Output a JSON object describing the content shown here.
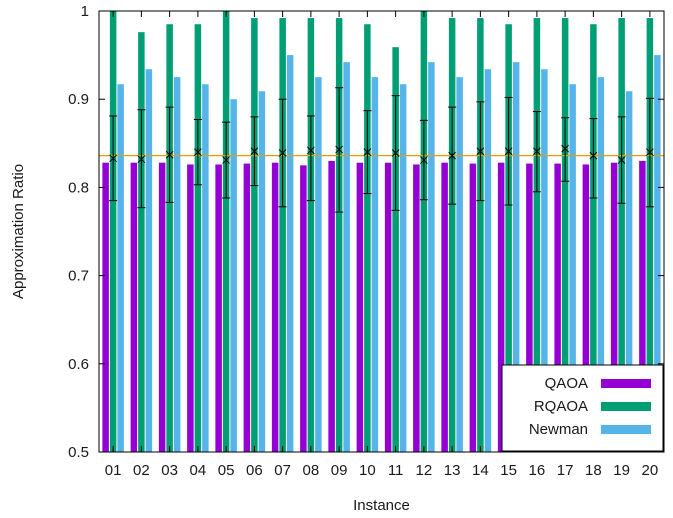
{
  "chart_data": {
    "type": "bar",
    "title": "",
    "xlabel": "Instance",
    "ylabel": "Approximation Ratio",
    "ylim": [
      0.5,
      1.0
    ],
    "yticks": [
      "0.5",
      "0.6",
      "0.7",
      "0.8",
      "0.9",
      "1"
    ],
    "ytick_values": [
      0.5,
      0.6,
      0.7,
      0.8,
      0.9,
      1.0
    ],
    "categories": [
      "01",
      "02",
      "03",
      "04",
      "05",
      "06",
      "07",
      "08",
      "09",
      "10",
      "11",
      "12",
      "13",
      "14",
      "15",
      "16",
      "17",
      "18",
      "19",
      "20"
    ],
    "series": [
      {
        "name": "QAOA",
        "color": "#9400d3",
        "values": [
          0.828,
          0.828,
          0.828,
          0.826,
          0.826,
          0.827,
          0.828,
          0.825,
          0.83,
          0.828,
          0.828,
          0.826,
          0.828,
          0.827,
          0.828,
          0.827,
          0.827,
          0.826,
          0.828,
          0.83
        ]
      },
      {
        "name": "RQAOA",
        "color": "#009e73",
        "values": [
          1.0,
          0.976,
          0.985,
          0.985,
          1.0,
          0.992,
          0.992,
          0.992,
          0.992,
          0.985,
          0.959,
          1.0,
          0.992,
          0.992,
          0.985,
          0.992,
          0.992,
          0.985,
          0.992,
          0.992
        ]
      },
      {
        "name": "Newman",
        "color": "#56b4e9",
        "values": [
          0.917,
          0.934,
          0.925,
          0.917,
          0.9,
          0.909,
          0.95,
          0.925,
          0.942,
          0.925,
          0.917,
          0.942,
          0.925,
          0.934,
          0.942,
          0.934,
          0.917,
          0.925,
          0.909,
          0.95
        ]
      }
    ],
    "errorbars": {
      "center": [
        0.833,
        0.832,
        0.837,
        0.84,
        0.831,
        0.841,
        0.839,
        0.842,
        0.843,
        0.84,
        0.839,
        0.831,
        0.836,
        0.841,
        0.841,
        0.841,
        0.844,
        0.836,
        0.831,
        0.84
      ],
      "lower": [
        0.785,
        0.777,
        0.783,
        0.803,
        0.788,
        0.802,
        0.778,
        0.785,
        0.772,
        0.793,
        0.774,
        0.786,
        0.781,
        0.785,
        0.78,
        0.795,
        0.807,
        0.788,
        0.782,
        0.778
      ],
      "upper": [
        0.881,
        0.888,
        0.891,
        0.877,
        0.874,
        0.88,
        0.9,
        0.881,
        0.913,
        0.887,
        0.904,
        0.876,
        0.891,
        0.897,
        0.902,
        0.886,
        0.879,
        0.878,
        0.88,
        0.901
      ],
      "color": "#000000"
    },
    "reference_line": {
      "value": 0.836,
      "color": "#e69f00"
    },
    "legend": {
      "position": "bottom-right"
    },
    "grid": false
  }
}
